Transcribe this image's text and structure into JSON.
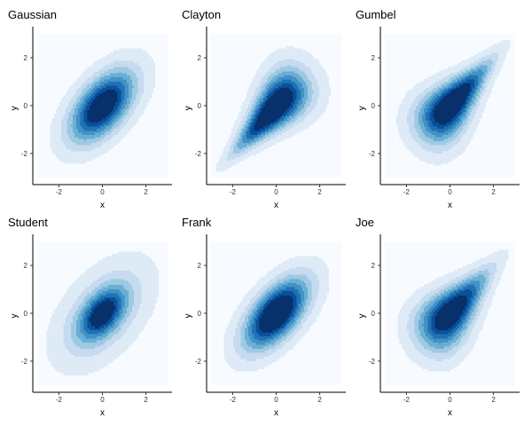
{
  "chart_data": [
    {
      "type": "heatmap",
      "title": "Gaussian",
      "xlabel": "x",
      "ylabel": "y",
      "xlim": [
        -3.2,
        3.2
      ],
      "ylim": [
        -3.3,
        3.3
      ],
      "xticks": [
        "-2",
        "0",
        "2"
      ],
      "yticks": [
        "2",
        "0",
        "-2"
      ],
      "copula": "gaussian",
      "correlation": 0.5,
      "levels": [
        0.01,
        0.03,
        0.05,
        0.07,
        0.09,
        0.11,
        0.13,
        0.15
      ],
      "grid": false
    },
    {
      "type": "heatmap",
      "title": "Clayton",
      "xlabel": "x",
      "ylabel": "y",
      "xlim": [
        -3.2,
        3.2
      ],
      "ylim": [
        -3.3,
        3.3
      ],
      "xticks": [
        "-2",
        "0",
        "2"
      ],
      "yticks": [
        "2",
        "0",
        "-2"
      ],
      "copula": "clayton",
      "correlation": 0.5,
      "levels": [
        0.01,
        0.03,
        0.05,
        0.07,
        0.09,
        0.11,
        0.13,
        0.15
      ],
      "grid": false
    },
    {
      "type": "heatmap",
      "title": "Gumbel",
      "xlabel": "x",
      "ylabel": "y",
      "xlim": [
        -3.2,
        3.2
      ],
      "ylim": [
        -3.3,
        3.3
      ],
      "xticks": [
        "-2",
        "0",
        "2"
      ],
      "yticks": [
        "2",
        "0",
        "-2"
      ],
      "copula": "gumbel",
      "correlation": 0.5,
      "levels": [
        0.01,
        0.03,
        0.05,
        0.07,
        0.09,
        0.11,
        0.13,
        0.15
      ],
      "grid": false
    },
    {
      "type": "heatmap",
      "title": "Student",
      "xlabel": "x",
      "ylabel": "y",
      "xlim": [
        -3.2,
        3.2
      ],
      "ylim": [
        -3.3,
        3.3
      ],
      "xticks": [
        "-2",
        "0",
        "2"
      ],
      "yticks": [
        "2",
        "0",
        "-2"
      ],
      "copula": "student",
      "correlation": 0.5,
      "levels": [
        0.01,
        0.03,
        0.05,
        0.07,
        0.09,
        0.11,
        0.13,
        0.15
      ],
      "grid": false
    },
    {
      "type": "heatmap",
      "title": "Frank",
      "xlabel": "x",
      "ylabel": "y",
      "xlim": [
        -3.2,
        3.2
      ],
      "ylim": [
        -3.3,
        3.3
      ],
      "xticks": [
        "-2",
        "0",
        "2"
      ],
      "yticks": [
        "2",
        "0",
        "-2"
      ],
      "copula": "frank",
      "correlation": 0.5,
      "levels": [
        0.01,
        0.03,
        0.05,
        0.07,
        0.09,
        0.11,
        0.13,
        0.15
      ],
      "grid": false
    },
    {
      "type": "heatmap",
      "title": "Joe",
      "xlabel": "x",
      "ylabel": "y",
      "xlim": [
        -3.2,
        3.2
      ],
      "ylim": [
        -3.3,
        3.3
      ],
      "xticks": [
        "-2",
        "0",
        "2"
      ],
      "yticks": [
        "2",
        "0",
        "-2"
      ],
      "copula": "joe",
      "correlation": 0.5,
      "levels": [
        0.01,
        0.03,
        0.05,
        0.07,
        0.09,
        0.11,
        0.13,
        0.15
      ],
      "grid": false
    }
  ],
  "colors": {
    "background": "#f7fbff",
    "levels": [
      "#deebf7",
      "#c6dbef",
      "#9ecae1",
      "#6baed6",
      "#4292c6",
      "#2171b5",
      "#08519c",
      "#08306b"
    ]
  }
}
